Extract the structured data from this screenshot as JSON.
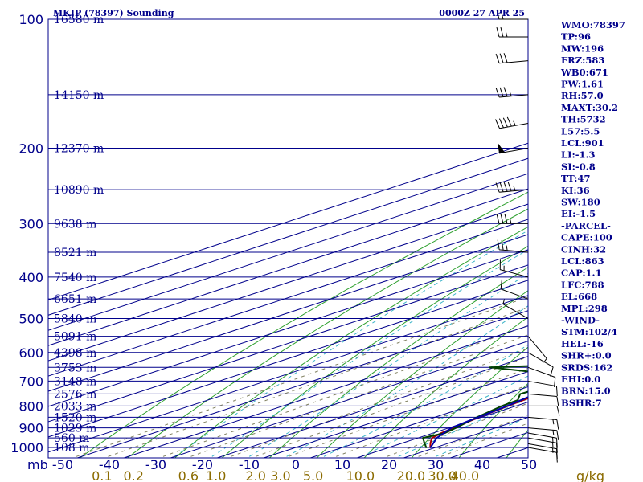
{
  "header": {
    "station": "MKJP (78397) Sounding",
    "time": "0000Z 27 APR 25"
  },
  "colors": {
    "frame": "#00008b",
    "isobar": "#00008b",
    "temperature": "#b00000",
    "dewpoint": "#004000",
    "parcel": "#0000aa",
    "dry_adiabat": "#2ea02e",
    "moist_adiabat": "#3cb4c8",
    "mixing_ratio": "#808060",
    "wind": "#000000",
    "mixing_ratio_label": "#8b6b00"
  },
  "chart_data": {
    "type": "line",
    "chart_kind": "skew-T log-P sounding",
    "x_axis_label": "",
    "x_ticks": [
      -50,
      -40,
      -30,
      -20,
      -10,
      0,
      10,
      20,
      30,
      40,
      50
    ],
    "x_tick_labels": [
      "-50",
      "-40",
      "-30",
      "-20",
      "-10",
      "0",
      "10",
      "20",
      "30",
      "40",
      "50"
    ],
    "y_axis_label": "mb",
    "pressure_range": [
      1000,
      100
    ],
    "pressure_ticks": [
      100,
      200,
      300,
      400,
      500,
      600,
      700,
      800,
      900,
      1000
    ],
    "y_scale": "log",
    "isobar_heights": [
      {
        "p": 100,
        "label": "16580 m"
      },
      {
        "p": 150,
        "label": "14150 m"
      },
      {
        "p": 200,
        "label": "12370 m"
      },
      {
        "p": 250,
        "label": "10890 m"
      },
      {
        "p": 300,
        "label": "9638 m"
      },
      {
        "p": 350,
        "label": "8521 m"
      },
      {
        "p": 400,
        "label": "7540 m"
      },
      {
        "p": 450,
        "label": "6651 m"
      },
      {
        "p": 500,
        "label": "5840 m"
      },
      {
        "p": 550,
        "label": "5091 m"
      },
      {
        "p": 600,
        "label": "4398 m"
      },
      {
        "p": 650,
        "label": "3753 m"
      },
      {
        "p": 700,
        "label": "3148 m"
      },
      {
        "p": 750,
        "label": "2576 m"
      },
      {
        "p": 800,
        "label": "2033 m"
      },
      {
        "p": 850,
        "label": "1520 m"
      },
      {
        "p": 900,
        "label": "1029 m"
      },
      {
        "p": 950,
        "label": "560 m"
      },
      {
        "p": 1000,
        "label": "108 m"
      }
    ],
    "mixing_ratio_labels": [
      "0.1",
      "0.2",
      "0.6",
      "1.0",
      "2.0",
      "3.0",
      "5.0",
      "10.0",
      "20.0",
      "30.0",
      "40.0"
    ],
    "mixing_ratio_unit": "g/kg",
    "series": [
      {
        "name": "",
        "kind": "temperature",
        "points": [
          [
            1003,
            29.2
          ],
          [
            975,
            25.8
          ],
          [
            950,
            23.0
          ],
          [
            925,
            21.7
          ],
          [
            900,
            21.0
          ],
          [
            850,
            19.4
          ],
          [
            800,
            18.3
          ],
          [
            750,
            17.1
          ],
          [
            700,
            14.4
          ],
          [
            675,
            12.5
          ],
          [
            650,
            10.3
          ],
          [
            600,
            7.5
          ],
          [
            550,
            3.9
          ],
          [
            500,
            -0.5
          ],
          [
            450,
            -5.7
          ],
          [
            400,
            -11.3
          ],
          [
            350,
            -17.7
          ],
          [
            300,
            -27.2
          ],
          [
            250,
            -37.8
          ],
          [
            225,
            -43.6
          ],
          [
            200,
            -51.5
          ],
          [
            175,
            -58.8
          ],
          [
            150,
            -66.6
          ],
          [
            125,
            -74.5
          ],
          [
            110,
            -76.4
          ],
          [
            100,
            -79.4
          ]
        ]
      },
      {
        "name": "",
        "kind": "dewpoint",
        "points": [
          [
            1003,
            28.4
          ],
          [
            975,
            24.5
          ],
          [
            950,
            21.0
          ],
          [
            925,
            22.5
          ],
          [
            900,
            21.5
          ],
          [
            850,
            19.0
          ],
          [
            800,
            17.0
          ],
          [
            775,
            16.5
          ],
          [
            750,
            13.0
          ],
          [
            725,
            13.5
          ],
          [
            700,
            11.0
          ],
          [
            675,
            7.8
          ],
          [
            650,
            -11.0
          ],
          [
            640,
            5.0
          ],
          [
            600,
            -5.0
          ],
          [
            560,
            -20.5
          ],
          [
            500,
            -0.5
          ],
          [
            480,
            -11.5
          ],
          [
            475,
            -6.5
          ],
          [
            470,
            -14.0
          ],
          [
            465,
            -6.0
          ],
          [
            450,
            -9.0
          ],
          [
            430,
            3.0
          ],
          [
            400,
            -21.0
          ],
          [
            360,
            -34.5
          ],
          [
            300,
            -41.0
          ],
          [
            275,
            -45.0
          ],
          [
            250,
            -50.5
          ],
          [
            200,
            -62.5
          ],
          [
            185,
            -68.0
          ],
          [
            150,
            -77.2
          ],
          [
            125,
            -85.0
          ],
          [
            100,
            -90.4
          ]
        ]
      },
      {
        "name": "",
        "kind": "parcel",
        "points": [
          [
            1003,
            29.2
          ],
          [
            950,
            24.0
          ],
          [
            900,
            20.5
          ],
          [
            863,
            19.5
          ],
          [
            850,
            19.3
          ],
          [
            800,
            18.1
          ],
          [
            750,
            16.3
          ],
          [
            700,
            14.5
          ],
          [
            650,
            12.5
          ],
          [
            600,
            10.0
          ],
          [
            550,
            7.0
          ],
          [
            500,
            3.4
          ],
          [
            450,
            -1.5
          ],
          [
            400,
            -7.5
          ],
          [
            350,
            -15.5
          ],
          [
            300,
            -25.0
          ],
          [
            250,
            -37.0
          ],
          [
            200,
            -52.0
          ],
          [
            150,
            -69.0
          ],
          [
            120,
            -81.0
          ]
        ]
      }
    ],
    "wind_barbs": [
      {
        "p": 1000,
        "dir": 100,
        "spd": 10
      },
      {
        "p": 980,
        "dir": 100,
        "spd": 15
      },
      {
        "p": 950,
        "dir": 100,
        "spd": 15
      },
      {
        "p": 925,
        "dir": 100,
        "spd": 15
      },
      {
        "p": 900,
        "dir": 95,
        "spd": 15
      },
      {
        "p": 850,
        "dir": 95,
        "spd": 15
      },
      {
        "p": 800,
        "dir": 90,
        "spd": 10
      },
      {
        "p": 750,
        "dir": 95,
        "spd": 10
      },
      {
        "p": 700,
        "dir": 100,
        "spd": 10
      },
      {
        "p": 650,
        "dir": 110,
        "spd": 10
      },
      {
        "p": 600,
        "dir": 120,
        "spd": 10
      },
      {
        "p": 550,
        "dir": 140,
        "spd": 5
      },
      {
        "p": 500,
        "dir": 300,
        "spd": 5
      },
      {
        "p": 450,
        "dir": 290,
        "spd": 10
      },
      {
        "p": 400,
        "dir": 285,
        "spd": 15
      },
      {
        "p": 350,
        "dir": 275,
        "spd": 25
      },
      {
        "p": 300,
        "dir": 270,
        "spd": 35
      },
      {
        "p": 250,
        "dir": 265,
        "spd": 45
      },
      {
        "p": 200,
        "dir": 260,
        "spd": 50
      },
      {
        "p": 175,
        "dir": 260,
        "spd": 45
      },
      {
        "p": 150,
        "dir": 265,
        "spd": 35
      },
      {
        "p": 125,
        "dir": 265,
        "spd": 30
      },
      {
        "p": 110,
        "dir": 270,
        "spd": 25
      },
      {
        "p": 100,
        "dir": 270,
        "spd": 20
      }
    ]
  },
  "indices": [
    "WMO:78397",
    "TP:96",
    "MW:196",
    "FRZ:583",
    "WB0:671",
    "PW:1.61",
    "RH:57.0",
    "MAXT:30.2",
    "TH:5732",
    "L57:5.5",
    "LCL:901",
    "LI:-1.3",
    "SI:-0.8",
    "TT:47",
    "KI:36",
    "SW:180",
    "EI:-1.5",
    "-PARCEL-",
    "CAPE:100",
    "CINH:32",
    "LCL:863",
    "CAP:1.1",
    "LFC:788",
    "EL:668",
    "MPL:298",
    "-WIND-",
    "STM:102/4",
    "HEL:-16",
    "SHR+:0.0",
    "SRDS:162",
    "EHI:0.0",
    "BRN:15.0",
    "BSHR:7"
  ]
}
